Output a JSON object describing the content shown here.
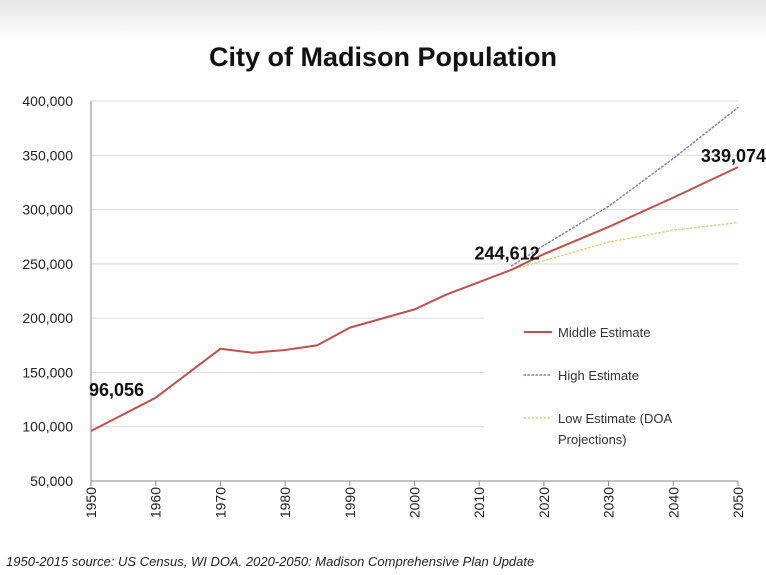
{
  "chart_data": {
    "type": "line",
    "title": "City of Madison Population",
    "xlabel": "",
    "ylabel": "",
    "xlim": [
      1950,
      2050
    ],
    "ylim": [
      50000,
      400000
    ],
    "x_ticks": [
      "1950",
      "1960",
      "1970",
      "1980",
      "1990",
      "2000",
      "2010",
      "2020",
      "2030",
      "2040",
      "2050"
    ],
    "y_ticks": [
      "50,000",
      "100,000",
      "150,000",
      "200,000",
      "250,000",
      "300,000",
      "350,000",
      "400,000"
    ],
    "grid": "horizontal",
    "legend_position": "right",
    "series": [
      {
        "name": "Middle Estimate",
        "color": "#c0504d",
        "style": "solid",
        "points": [
          [
            1950,
            96056
          ],
          [
            1960,
            126706
          ],
          [
            1970,
            171809
          ],
          [
            1975,
            168196
          ],
          [
            1980,
            170616
          ],
          [
            1985,
            175000
          ],
          [
            1990,
            191262
          ],
          [
            2000,
            208054
          ],
          [
            2005,
            222000
          ],
          [
            2010,
            233209
          ],
          [
            2015,
            244612
          ],
          [
            2020,
            259000
          ],
          [
            2030,
            284000
          ],
          [
            2040,
            311000
          ],
          [
            2050,
            339074
          ]
        ]
      },
      {
        "name": "High Estimate",
        "color": "#8080b8",
        "style": "dotted",
        "points": [
          [
            2015,
            248000
          ],
          [
            2020,
            267000
          ],
          [
            2030,
            303000
          ],
          [
            2040,
            347000
          ],
          [
            2050,
            394000
          ]
        ]
      },
      {
        "name": "Low Estimate (DOA Projections)",
        "color": "#d4d48a",
        "style": "dotted",
        "points": [
          [
            2015,
            244612
          ],
          [
            2020,
            253000
          ],
          [
            2030,
            270000
          ],
          [
            2040,
            281000
          ],
          [
            2050,
            288000
          ]
        ]
      }
    ],
    "annotations": [
      {
        "text": "96,056",
        "x": 1950,
        "y": 96056
      },
      {
        "text": "244,612",
        "x": 2015,
        "y": 244612
      },
      {
        "text": "339,074",
        "x": 2050,
        "y": 339074
      }
    ],
    "legend": [
      {
        "label_lines": [
          "Middle Estimate"
        ],
        "color": "#c0504d",
        "style": "solid"
      },
      {
        "label_lines": [
          "High Estimate"
        ],
        "color": "#8080b8",
        "style": "dotted"
      },
      {
        "label_lines": [
          "Low Estimate (DOA",
          "Projections)"
        ],
        "color": "#d4d48a",
        "style": "dotted"
      }
    ]
  },
  "footer": {
    "source": "1950-2015 source: US Census, WI DOA.  2020-2050: Madison Comprehensive Plan Update"
  }
}
